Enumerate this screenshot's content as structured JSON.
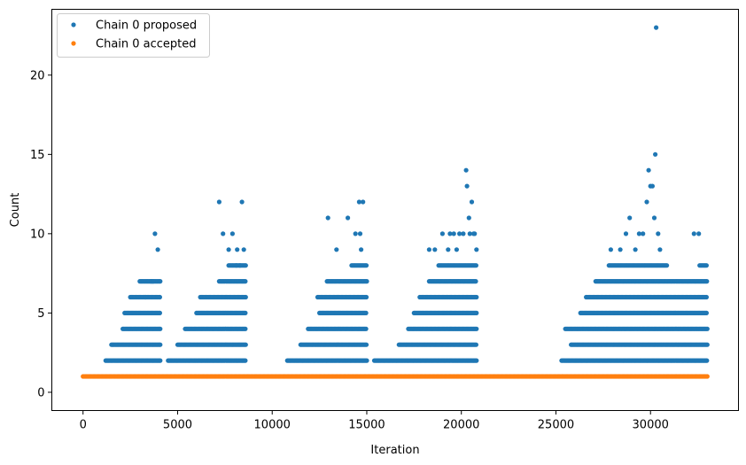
{
  "chart_data": {
    "type": "scatter",
    "xlabel": "Iteration",
    "ylabel": "Count",
    "xlim": [
      -1650,
      34650
    ],
    "ylim": [
      -1.15,
      24.15
    ],
    "x_ticks": [
      0,
      5000,
      10000,
      15000,
      20000,
      25000,
      30000
    ],
    "x_tick_labels": [
      "0",
      "5000",
      "10000",
      "15000",
      "20000",
      "25000",
      "30000"
    ],
    "y_ticks": [
      0,
      5,
      10,
      15,
      20
    ],
    "y_tick_labels": [
      "0",
      "5",
      "10",
      "15",
      "20"
    ],
    "grid": false,
    "legend": {
      "position": "top-left"
    },
    "series": [
      {
        "name": "Chain 0 proposed",
        "color": "#1f77b4",
        "bands": [
          {
            "y": 2,
            "x_ranges": [
              [
                1200,
                4100
              ],
              [
                4500,
                8600
              ],
              [
                10800,
                15000
              ],
              [
                15400,
                20800
              ],
              [
                25300,
                33000
              ]
            ]
          },
          {
            "y": 3,
            "x_ranges": [
              [
                1500,
                4100
              ],
              [
                5000,
                8600
              ],
              [
                11500,
                15000
              ],
              [
                16700,
                20800
              ],
              [
                25800,
                33000
              ]
            ]
          },
          {
            "y": 4,
            "x_ranges": [
              [
                2100,
                4100
              ],
              [
                5400,
                8600
              ],
              [
                11900,
                15000
              ],
              [
                17200,
                20800
              ],
              [
                25500,
                33000
              ]
            ]
          },
          {
            "y": 5,
            "x_ranges": [
              [
                2200,
                4100
              ],
              [
                6000,
                8600
              ],
              [
                12500,
                15000
              ],
              [
                17500,
                20800
              ],
              [
                26300,
                33000
              ]
            ]
          },
          {
            "y": 6,
            "x_ranges": [
              [
                2500,
                4100
              ],
              [
                6200,
                8600
              ],
              [
                12400,
                15000
              ],
              [
                17800,
                20800
              ],
              [
                26600,
                33000
              ]
            ]
          },
          {
            "y": 7,
            "x_ranges": [
              [
                3000,
                4100
              ],
              [
                7200,
                8600
              ],
              [
                12900,
                15000
              ],
              [
                18300,
                20800
              ],
              [
                27100,
                33000
              ]
            ]
          },
          {
            "y": 8,
            "x_ranges": [
              [
                7700,
                8600
              ],
              [
                14200,
                15000
              ],
              [
                18800,
                20800
              ],
              [
                27800,
                30900
              ],
              [
                32600,
                33000
              ]
            ]
          }
        ],
        "points": [
          [
            3300,
            6
          ],
          [
            3600,
            7
          ],
          [
            3800,
            10
          ],
          [
            3950,
            9
          ],
          [
            3700,
            7
          ],
          [
            7200,
            12
          ],
          [
            7400,
            10
          ],
          [
            7700,
            9
          ],
          [
            7900,
            10
          ],
          [
            8150,
            9
          ],
          [
            8400,
            12
          ],
          [
            8500,
            9
          ],
          [
            8300,
            8
          ],
          [
            8100,
            8
          ],
          [
            12950,
            11
          ],
          [
            13400,
            9
          ],
          [
            14000,
            11
          ],
          [
            14400,
            10
          ],
          [
            14600,
            12
          ],
          [
            14800,
            12
          ],
          [
            14700,
            9
          ],
          [
            14650,
            10
          ],
          [
            18300,
            9
          ],
          [
            18600,
            9
          ],
          [
            19000,
            10
          ],
          [
            19300,
            9
          ],
          [
            19400,
            10
          ],
          [
            19600,
            10
          ],
          [
            19750,
            9
          ],
          [
            19900,
            10
          ],
          [
            20100,
            10
          ],
          [
            20250,
            14
          ],
          [
            20300,
            13
          ],
          [
            20400,
            11
          ],
          [
            20550,
            12
          ],
          [
            20700,
            10
          ],
          [
            20800,
            9
          ],
          [
            20650,
            10
          ],
          [
            20450,
            10
          ],
          [
            27900,
            9
          ],
          [
            28400,
            9
          ],
          [
            28700,
            10
          ],
          [
            28900,
            11
          ],
          [
            29200,
            9
          ],
          [
            29600,
            10
          ],
          [
            29900,
            14
          ],
          [
            30000,
            13
          ],
          [
            30100,
            13
          ],
          [
            30200,
            11
          ],
          [
            30250,
            15
          ],
          [
            30300,
            23
          ],
          [
            30400,
            10
          ],
          [
            30500,
            9
          ],
          [
            29800,
            12
          ],
          [
            29400,
            10
          ],
          [
            32300,
            10
          ],
          [
            32550,
            10
          ]
        ]
      },
      {
        "name": "Chain 0 accepted",
        "color": "#ff7f0e",
        "bands": [
          {
            "y": 1,
            "x_ranges": [
              [
                0,
                33000
              ]
            ]
          }
        ],
        "points": []
      }
    ]
  }
}
